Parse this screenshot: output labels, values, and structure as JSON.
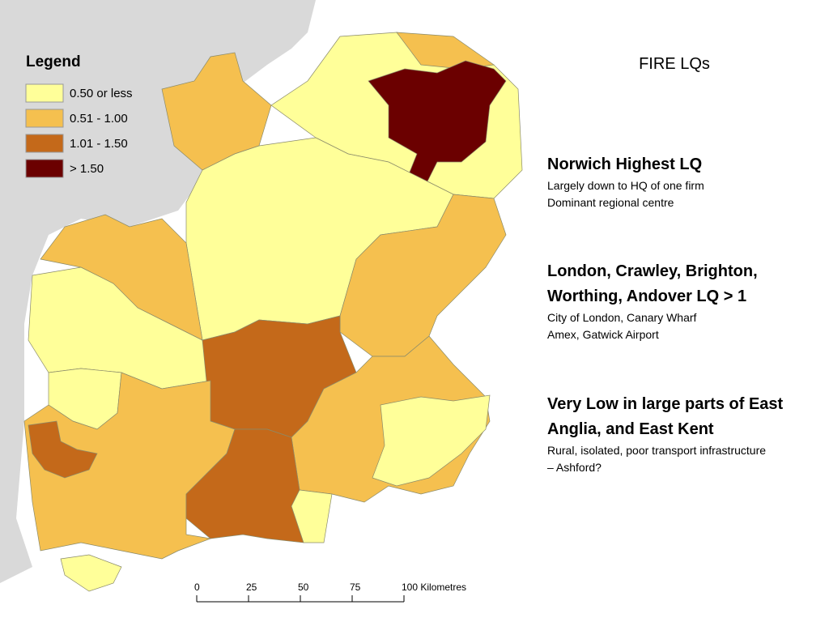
{
  "legend": {
    "title": "Legend",
    "items": [
      {
        "label": "0.50 or less",
        "color": "#ffff99"
      },
      {
        "label": "0.51 - 1.00",
        "color": "#f5c04f"
      },
      {
        "label": "1.01 - 1.50",
        "color": "#c4691a"
      },
      {
        "label": "> 1.50",
        "color": "#6b0000"
      }
    ]
  },
  "scale_bar": {
    "labels": [
      "0",
      "25",
      "50",
      "75",
      "100 Kilometres"
    ]
  },
  "title": "FIRE LQs",
  "sections": [
    {
      "heading": "Norwich Highest LQ",
      "lines": [
        "Largely down to HQ of one firm",
        "Dominant regional centre"
      ]
    },
    {
      "heading": "London, Crawley, Brighton, Worthing, Andover  LQ > 1",
      "lines": [
        "City of London, Canary Wharf",
        "Amex, Gatwick Airport"
      ]
    },
    {
      "heading": "Very Low in large parts of East Anglia, and East Kent",
      "lines": [
        "Rural, isolated, poor transport infrastructure",
        "– Ashford?"
      ]
    }
  ]
}
